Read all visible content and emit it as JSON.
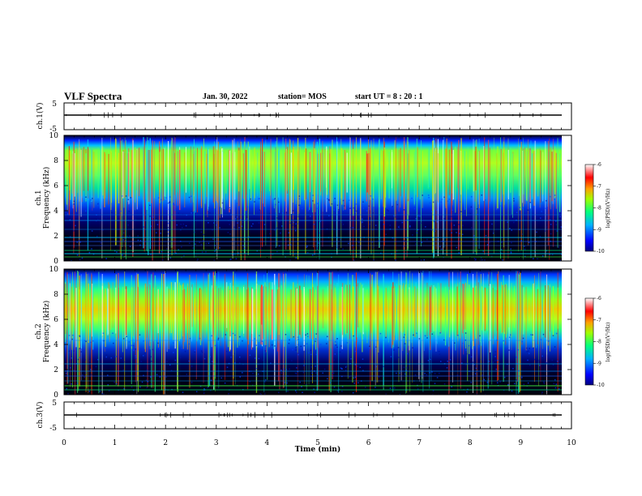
{
  "header": {
    "title": "VLF Spectra",
    "date": "Jan. 30, 2022",
    "station": "station= MOS",
    "start_ut": "start  UT =   8 : 20 : 1"
  },
  "chart_data": [
    {
      "type": "line",
      "panel": "ch1-waveform",
      "ylabel": "ch.1(V)",
      "ylim": [
        -5,
        5
      ],
      "yticks": [
        "5",
        "-5"
      ],
      "xlim": [
        0,
        10
      ],
      "level": 0
    },
    {
      "type": "heatmap",
      "panel": "ch1-spectrogram",
      "ylabel_top": "ch.1",
      "ylabel": "Frequency (kHz)",
      "ylim": [
        0,
        10
      ],
      "yticks": [
        "0",
        "2",
        "4",
        "6",
        "8",
        "10"
      ],
      "xlim": [
        0,
        10
      ],
      "colorbar": {
        "label": "log(PSD)(V²/Hz)",
        "ticks": [
          "-6",
          "-7",
          "-8",
          "-9",
          "-10"
        ],
        "range": [
          -10,
          -6
        ]
      },
      "emission_band_khz": [
        4.5,
        9.5
      ]
    },
    {
      "type": "heatmap",
      "panel": "ch2-spectrogram",
      "ylabel_top": "ch.2",
      "ylabel": "Frequency (kHz)",
      "ylim": [
        0,
        10
      ],
      "yticks": [
        "0",
        "2",
        "4",
        "6",
        "8",
        "10"
      ],
      "xlim": [
        0,
        10
      ],
      "colorbar": {
        "label": "log(PSD)(V²/Hz)",
        "ticks": [
          "-6",
          "-7",
          "-8",
          "-9",
          "-10"
        ],
        "range": [
          -10,
          -6
        ]
      },
      "emission_band_khz": [
        5.0,
        9.0
      ]
    },
    {
      "type": "line",
      "panel": "ch3-waveform",
      "ylabel": "ch.3(V)",
      "ylim": [
        -5,
        5
      ],
      "yticks": [
        "5",
        "-5"
      ],
      "xlim": [
        0,
        10
      ],
      "xticks": [
        "0",
        "1",
        "2",
        "3",
        "4",
        "5",
        "6",
        "7",
        "8",
        "9",
        "10"
      ],
      "xlabel": "Time (min)",
      "level": 0
    }
  ]
}
